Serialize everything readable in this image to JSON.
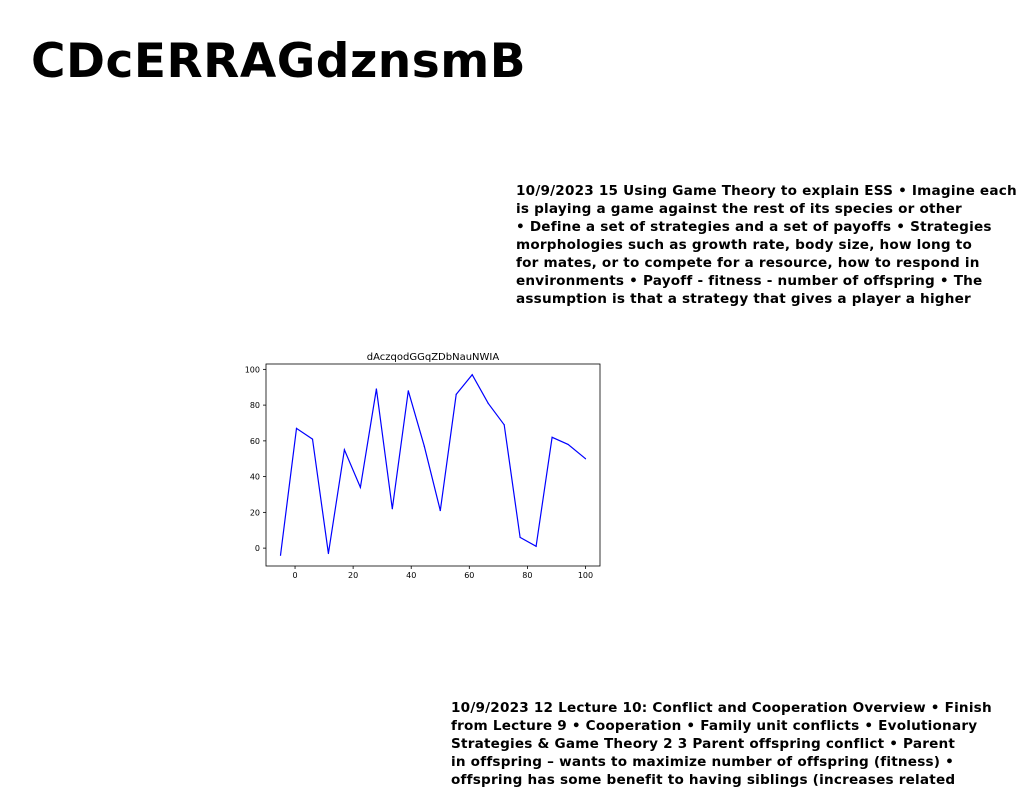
{
  "page": {
    "title": "CDcERRAGdznsmB"
  },
  "text_blocks": [
    {
      "lines": [
        "10/9/2023 15 Using Game Theory to explain ESS • Imagine each",
        "is playing a game against the rest of its species or other",
        "• Define a set of strategies and a set of payoffs • Strategies",
        "morphologies such as growth rate, body size, how long to",
        "for mates, or to compete for a resource, how to respond in",
        "environments • Payoff - fitness - number of offspring • The",
        "assumption is that a strategy that gives a player a higher"
      ]
    },
    {
      "lines": [
        "10/9/2023 12 Lecture 10: Conflict and Cooperation Overview • Finish",
        "from Lecture 9 • Cooperation • Family unit conflicts • Evolutionary",
        "Strategies & Game Theory 2 3 Parent offspring conflict • Parent",
        "in offspring – wants to maximize number of offspring (fitness) •",
        "offspring has some benefit to having siblings (increases related"
      ]
    }
  ],
  "chart_data": {
    "type": "line",
    "title": "dAczqodGGqZDbNauNWIA",
    "xlabel": "",
    "ylabel": "",
    "xlim": [
      -10,
      105
    ],
    "ylim": [
      -10,
      103
    ],
    "xticks": [
      0,
      20,
      40,
      60,
      80,
      100
    ],
    "yticks": [
      0,
      20,
      40,
      60,
      80,
      100
    ],
    "grid": false,
    "legend": "none",
    "series": [
      {
        "color": "#0000ff",
        "x": [
          -5,
          0.5,
          6,
          11.5,
          17,
          22.5,
          28,
          33.5,
          39,
          44.5,
          50,
          55.5,
          61,
          66.5,
          72,
          77.5,
          83,
          88.5,
          94,
          100
        ],
        "y": [
          -4,
          67,
          61,
          -3,
          55,
          34,
          89,
          22,
          88,
          57,
          21,
          86,
          97,
          81,
          69,
          6,
          1,
          62,
          58,
          50
        ]
      }
    ]
  }
}
